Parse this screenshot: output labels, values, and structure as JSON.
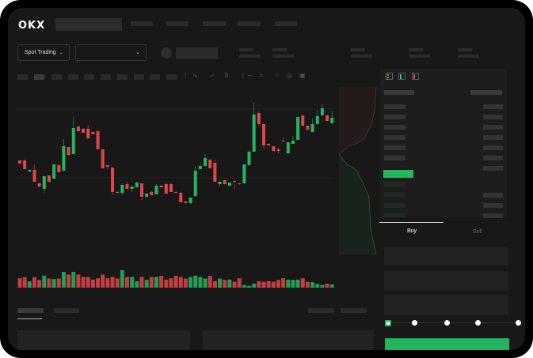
{
  "header": {
    "logo": "OKX"
  },
  "market_bar": {
    "mode_select": "Spot Trading"
  },
  "order_form": {
    "tabs": [
      "Buy",
      "Sell"
    ],
    "active_tab": "Buy",
    "leverage_slider_value": 0
  },
  "colors": {
    "up": "#26b55f",
    "down": "#e0454a",
    "accent": "#22b35e",
    "background": "#181818"
  },
  "icons": [
    "chevron-down-icon",
    "line-tool-icon",
    "ruler-icon",
    "camera-icon",
    "settings-icon",
    "fullscreen-icon",
    "orderbook-both-icon",
    "orderbook-bids-icon",
    "orderbook-asks-icon"
  ],
  "chart_data": {
    "type": "candlestick",
    "ylim": [
      35,
      175
    ],
    "candles": [
      [
        97,
        97,
        93,
        93
      ],
      [
        97,
        98,
        86,
        86
      ],
      [
        83,
        85,
        83,
        85
      ],
      [
        85,
        92,
        70,
        70
      ],
      [
        68,
        69,
        63,
        64
      ],
      [
        61,
        77,
        56,
        77
      ],
      [
        78,
        78,
        70,
        70
      ],
      [
        74,
        92,
        73,
        92
      ],
      [
        91,
        92,
        82,
        82
      ],
      [
        84,
        124,
        84,
        115
      ],
      [
        114,
        114,
        103,
        104
      ],
      [
        105,
        152,
        105,
        138
      ],
      [
        140,
        140,
        134,
        134
      ],
      [
        137,
        138,
        132,
        132
      ],
      [
        137,
        142,
        124,
        125
      ],
      [
        133,
        134,
        130,
        130
      ],
      [
        134,
        136,
        111,
        111
      ],
      [
        111,
        112,
        87,
        87
      ],
      [
        91,
        91,
        86,
        89
      ],
      [
        88,
        88,
        53,
        57
      ],
      [
        57,
        58,
        55,
        56
      ],
      [
        56,
        68,
        53,
        66
      ],
      [
        67,
        70,
        61,
        61
      ],
      [
        61,
        64,
        57,
        64
      ],
      [
        63,
        70,
        63,
        69
      ],
      [
        68,
        68,
        47,
        51
      ],
      [
        51,
        55,
        50,
        55
      ],
      [
        57,
        58,
        53,
        53
      ],
      [
        54,
        67,
        54,
        65
      ],
      [
        65,
        66,
        63,
        63
      ],
      [
        67,
        68,
        55,
        55
      ],
      [
        67,
        68,
        57,
        57
      ],
      [
        57,
        58,
        55,
        56
      ],
      [
        56,
        57,
        44,
        44
      ],
      [
        45,
        46,
        43,
        43
      ],
      [
        43,
        50,
        42,
        50
      ],
      [
        52,
        90,
        51,
        84
      ],
      [
        86,
        93,
        86,
        90
      ],
      [
        90,
        105,
        90,
        100
      ],
      [
        98,
        98,
        87,
        87
      ],
      [
        94,
        98,
        70,
        70
      ],
      [
        67,
        71,
        65,
        70
      ],
      [
        72,
        72,
        67,
        67
      ],
      [
        65,
        69,
        64,
        69
      ],
      [
        71,
        72,
        60,
        70
      ],
      [
        68,
        68,
        66,
        67
      ],
      [
        68,
        92,
        67,
        92
      ],
      [
        91,
        110,
        91,
        108
      ],
      [
        108,
        171,
        108,
        155
      ],
      [
        157,
        159,
        140,
        143
      ],
      [
        143,
        143,
        112,
        116
      ],
      [
        118,
        119,
        116,
        116
      ],
      [
        115,
        115,
        109,
        109
      ],
      [
        111,
        113,
        106,
        109
      ],
      [
        122,
        126,
        121,
        121
      ],
      [
        106,
        120,
        106,
        120
      ],
      [
        118,
        128,
        118,
        122
      ],
      [
        123,
        152,
        123,
        152
      ],
      [
        154,
        154,
        140,
        141
      ],
      [
        141,
        141,
        136,
        136
      ],
      [
        133,
        150,
        133,
        143
      ],
      [
        143,
        161,
        143,
        153
      ],
      [
        154,
        168,
        154,
        163
      ],
      [
        154,
        155,
        147,
        147
      ],
      [
        144,
        160,
        144,
        151
      ]
    ],
    "candle_fields": [
      "open",
      "high",
      "low",
      "close"
    ],
    "volume": [
      35,
      39,
      24,
      39,
      29,
      45,
      34,
      32,
      34,
      59,
      49,
      59,
      49,
      40,
      40,
      30,
      35,
      49,
      35,
      40,
      34,
      65,
      40,
      40,
      24,
      40,
      29,
      40,
      40,
      44,
      30,
      35,
      44,
      40,
      34,
      40,
      45,
      40,
      34,
      44,
      25,
      34,
      29,
      30,
      22,
      35,
      10,
      7,
      15,
      24,
      22,
      24,
      22,
      29,
      35,
      30,
      29,
      30,
      35,
      22,
      20,
      14,
      10,
      15,
      12
    ]
  }
}
